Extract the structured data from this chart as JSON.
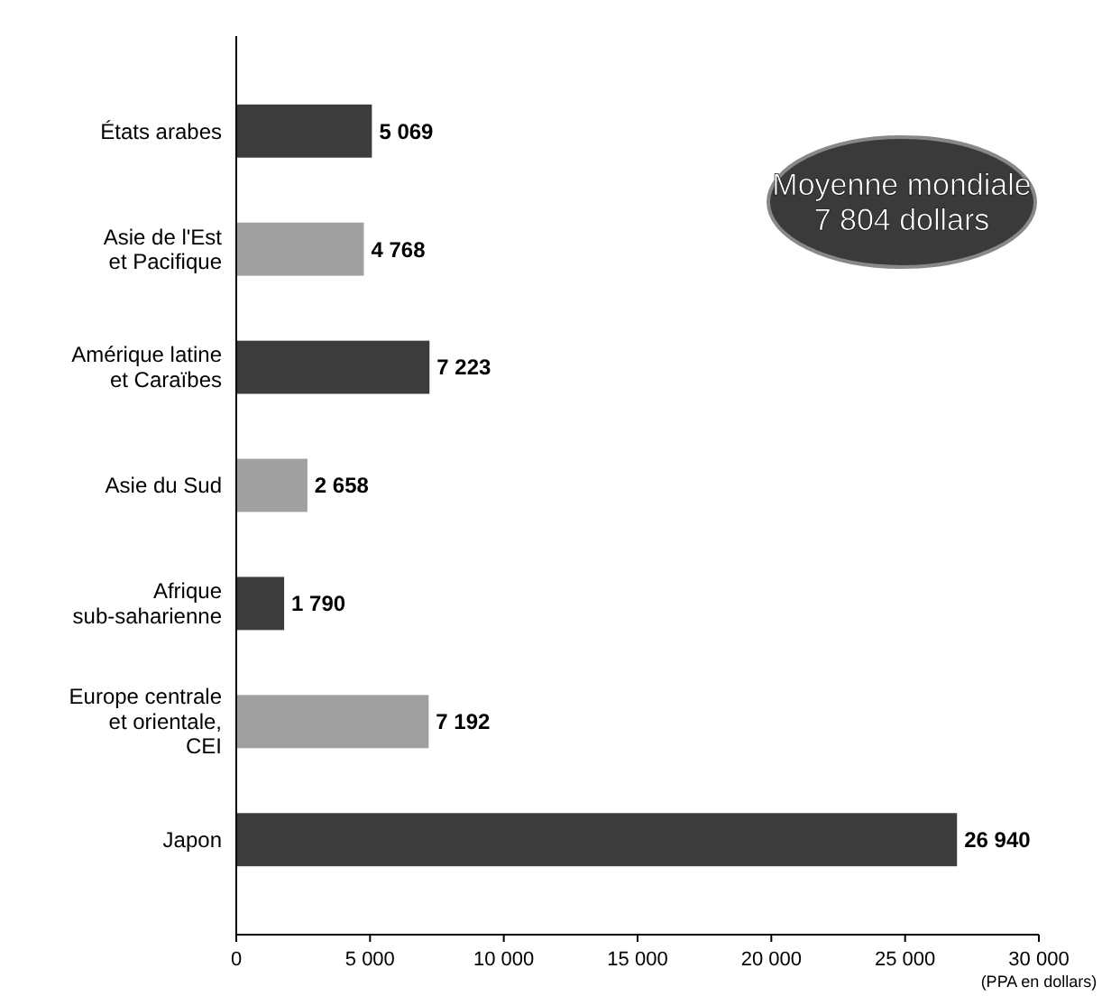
{
  "chart_data": {
    "type": "bar",
    "orientation": "horizontal",
    "xlabel": "(PPA en dollars)",
    "categories": [
      "États arabes",
      "Asie de l'Est et Pacifique",
      "Amérique latine et Caraïbes",
      "Asie du Sud",
      "Afrique sub-saharienne",
      "Europe centrale et orientale, CEI",
      "Japon"
    ],
    "values": [
      5069,
      4768,
      7223,
      2658,
      1790,
      7192,
      26940
    ],
    "colors": [
      "#3c3c3c",
      "#a0a0a0",
      "#3c3c3c",
      "#a0a0a0",
      "#3c3c3c",
      "#a0a0a0",
      "#3c3c3c"
    ],
    "value_labels": [
      "5 069",
      "4 768",
      "7 223",
      "2 658",
      "1 790",
      "7 192",
      "26 940"
    ],
    "xlim": [
      0,
      30000
    ],
    "xticks": [
      0,
      {
        "value": 5000,
        "label": "5 000"
      },
      {
        "value": 10000,
        "label": "10 000"
      },
      {
        "value": 15000,
        "label": "15 000"
      },
      {
        "value": 20000,
        "label": "20 000"
      },
      {
        "value": 25000,
        "label": "25 000"
      },
      {
        "value": 30000,
        "label": "30 000"
      }
    ],
    "annotations": [
      "Moyenne mondiale\n7 804 dollars"
    ]
  }
}
